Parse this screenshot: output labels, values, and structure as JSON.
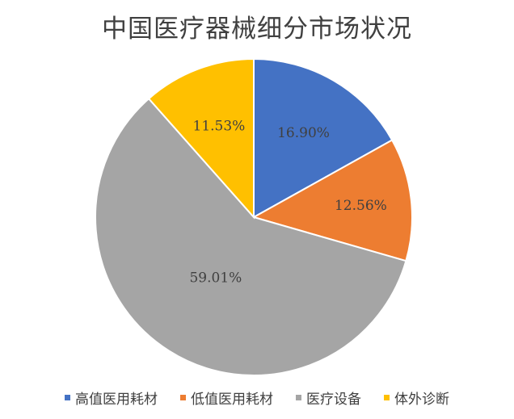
{
  "chart_data": {
    "type": "pie",
    "title": "中国医疗器械细分市场状况",
    "categories": [
      "高值医用耗材",
      "低值医用耗材",
      "医疗设备",
      "体外诊断"
    ],
    "values": [
      16.9,
      12.56,
      59.01,
      11.53
    ],
    "labels": [
      "16.90%",
      "12.56%",
      "59.01%",
      "11.53%"
    ],
    "colors": [
      "#4472C4",
      "#ED7D31",
      "#A5A5A5",
      "#FFC000"
    ],
    "legend_position": "bottom"
  }
}
